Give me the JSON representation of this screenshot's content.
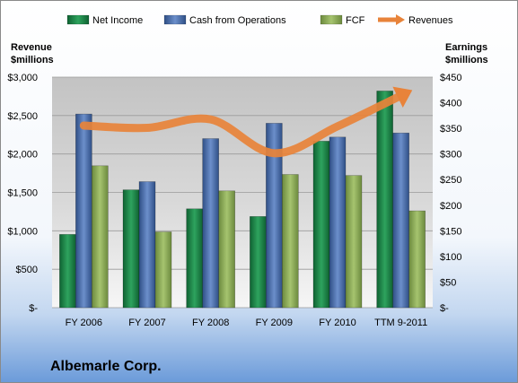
{
  "company_name": "Albemarle Corp.",
  "chart_data": {
    "type": "bar",
    "categories": [
      "FY 2006",
      "FY 2007",
      "FY 2008",
      "FY 2009",
      "FY 2010",
      "TTM 9-2011"
    ],
    "series": [
      {
        "name": "Net Income",
        "axis": "right",
        "color": "#1e8a4c",
        "values": [
          143,
          230,
          193,
          178,
          325,
          423
        ]
      },
      {
        "name": "Cash from Operations",
        "axis": "right",
        "color": "#4f73b8",
        "values": [
          378,
          246,
          330,
          360,
          333,
          341
        ]
      },
      {
        "name": "FCF",
        "axis": "right",
        "color": "#8fb35a",
        "values": [
          277,
          148,
          228,
          260,
          258,
          189
        ]
      },
      {
        "name": "Revenues",
        "axis": "left",
        "type": "line",
        "color": "#e8833a",
        "values": [
          2370,
          2340,
          2450,
          2010,
          2360,
          2760
        ]
      }
    ],
    "left_axis": {
      "label_line1": "Revenue",
      "label_line2": "$millions",
      "ylim": [
        0,
        3000
      ],
      "ticks": [
        "$-",
        "$500",
        "$1,000",
        "$1,500",
        "$2,000",
        "$2,500",
        "$3,000"
      ]
    },
    "right_axis": {
      "label_line1": "Earnings",
      "label_line2": "$millions",
      "ylim": [
        0,
        450
      ],
      "ticks": [
        "$-",
        "$50",
        "$100",
        "$150",
        "$200",
        "$250",
        "$300",
        "$350",
        "$400",
        "$450"
      ]
    },
    "legend_position": "top",
    "grid": true
  }
}
